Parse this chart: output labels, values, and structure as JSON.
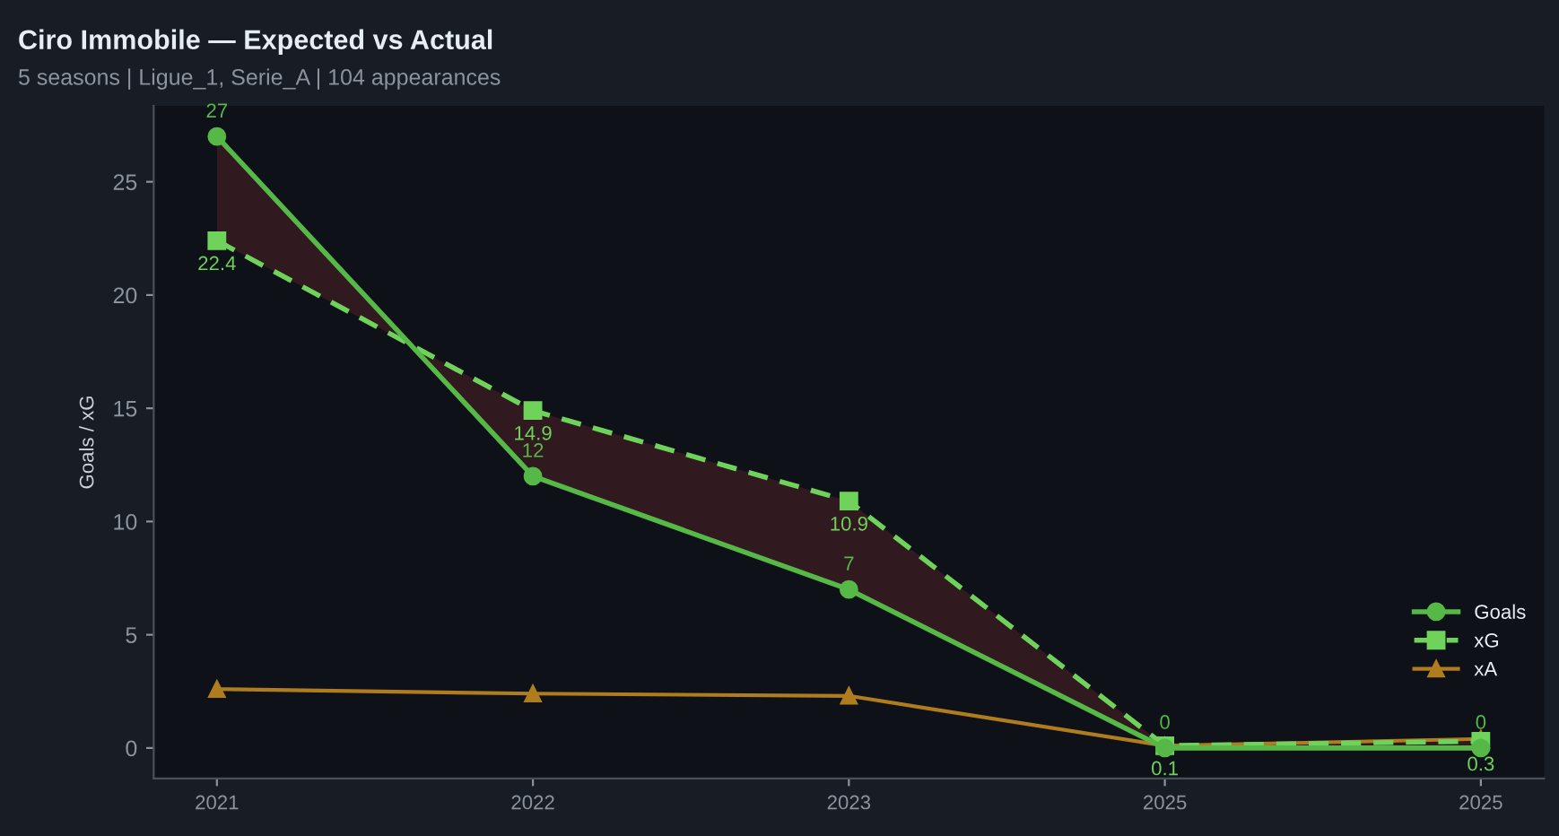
{
  "chart_data": {
    "type": "line",
    "title": "Ciro Immobile — Expected vs Actual",
    "subtitle": "5 seasons | Ligue_1, Serie_A | 104 appearances",
    "ylabel": "Goals / xG",
    "categories": [
      "2021",
      "2022",
      "2023",
      "2025",
      "2025"
    ],
    "series": [
      {
        "name": "Goals",
        "color": "#56b947",
        "values": [
          27,
          12,
          7,
          0,
          0
        ],
        "marker": "circle",
        "line_style": "solid",
        "value_labels": [
          "27",
          "12",
          "7",
          "0",
          "0"
        ],
        "lower": [
          22.4,
          14.9,
          10.9,
          0.1,
          0.3
        ],
        "upper": [
          27,
          12,
          7,
          0,
          0
        ]
      },
      {
        "name": "xG",
        "color": "#6fd35b",
        "values": [
          22.4,
          14.9,
          10.9,
          0.1,
          0.3
        ],
        "marker": "square",
        "line_style": "dashed",
        "value_labels": [
          "22.4",
          "14.9",
          "10.9",
          "0.1",
          "0.3"
        ]
      },
      {
        "name": "xA",
        "color": "#b07d1e",
        "values": [
          2.6,
          2.4,
          2.3,
          0.1,
          0.4
        ],
        "marker": "triangle",
        "line_style": "solid"
      }
    ],
    "ylim": [
      -1.35,
      28.35
    ],
    "yticks": [
      0,
      5,
      10,
      15,
      20,
      25
    ],
    "grid": false,
    "legend": "bottom right"
  }
}
